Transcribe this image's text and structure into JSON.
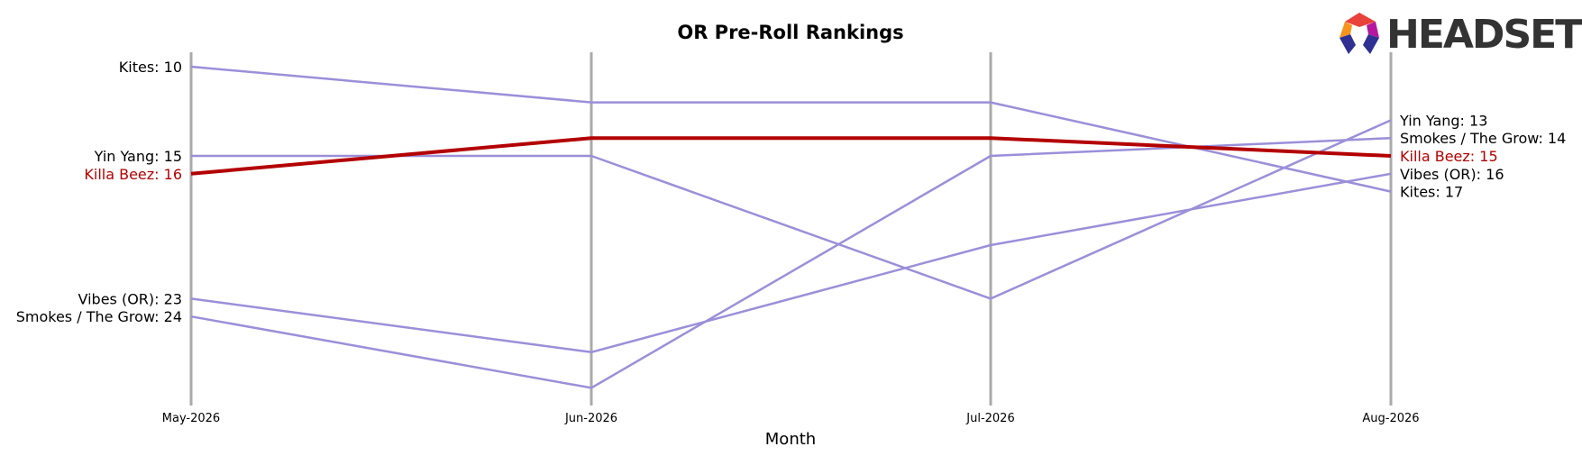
{
  "chart_data": {
    "type": "line",
    "title": "OR Pre-Roll Rankings",
    "xlabel": "Month",
    "ylabel": "",
    "categories": [
      "May-2026",
      "Jun-2026",
      "Jul-2026",
      "Aug-2026"
    ],
    "y_inverted": true,
    "ylim": [
      29,
      8
    ],
    "grid": false,
    "legend": "end labels on both sides",
    "highlight_series": "Killa Beez",
    "series": [
      {
        "name": "Kites",
        "values": [
          10,
          12,
          12,
          17
        ],
        "color": "#9b8fd9",
        "highlight": false
      },
      {
        "name": "Yin Yang",
        "values": [
          15,
          15,
          23,
          13
        ],
        "color": "#9b8fd9",
        "highlight": false
      },
      {
        "name": "Killa Beez",
        "values": [
          16,
          14,
          14,
          15
        ],
        "color": "#b30000",
        "highlight": true
      },
      {
        "name": "Vibes (OR)",
        "values": [
          23,
          26,
          20,
          16
        ],
        "color": "#9b8fd9",
        "highlight": false
      },
      {
        "name": "Smokes / The Grow",
        "values": [
          24,
          28,
          15,
          14
        ],
        "color": "#9b8fd9",
        "highlight": false
      }
    ],
    "left_labels": [
      {
        "series": "Kites",
        "text": "Kites: 10",
        "value": 10
      },
      {
        "series": "Yin Yang",
        "text": "Yin Yang: 15",
        "value": 15
      },
      {
        "series": "Killa Beez",
        "text": "Killa Beez: 16",
        "value": 16
      },
      {
        "series": "Vibes (OR)",
        "text": "Vibes (OR): 23",
        "value": 23
      },
      {
        "series": "Smokes / The Grow",
        "text": "Smokes / The Grow: 24",
        "value": 24
      }
    ],
    "right_labels": [
      {
        "series": "Yin Yang",
        "text": "Yin Yang: 13",
        "value": 13
      },
      {
        "series": "Smokes / The Grow",
        "text": "Smokes / The Grow: 14",
        "value": 14
      },
      {
        "series": "Killa Beez",
        "text": "Killa Beez: 15",
        "value": 15
      },
      {
        "series": "Vibes (OR)",
        "text": "Vibes (OR): 16",
        "value": 16
      },
      {
        "series": "Kites",
        "text": "Kites: 17",
        "value": 17
      }
    ]
  },
  "logo": {
    "text": "HEADSET",
    "colors": [
      "#e8423a",
      "#f7941d",
      "#8e1c8e",
      "#2e3192",
      "#b5179e"
    ]
  },
  "colors": {
    "vertical_line": "#aaaaaa",
    "highlight_label": "#b30000",
    "default_label": "#000000"
  }
}
